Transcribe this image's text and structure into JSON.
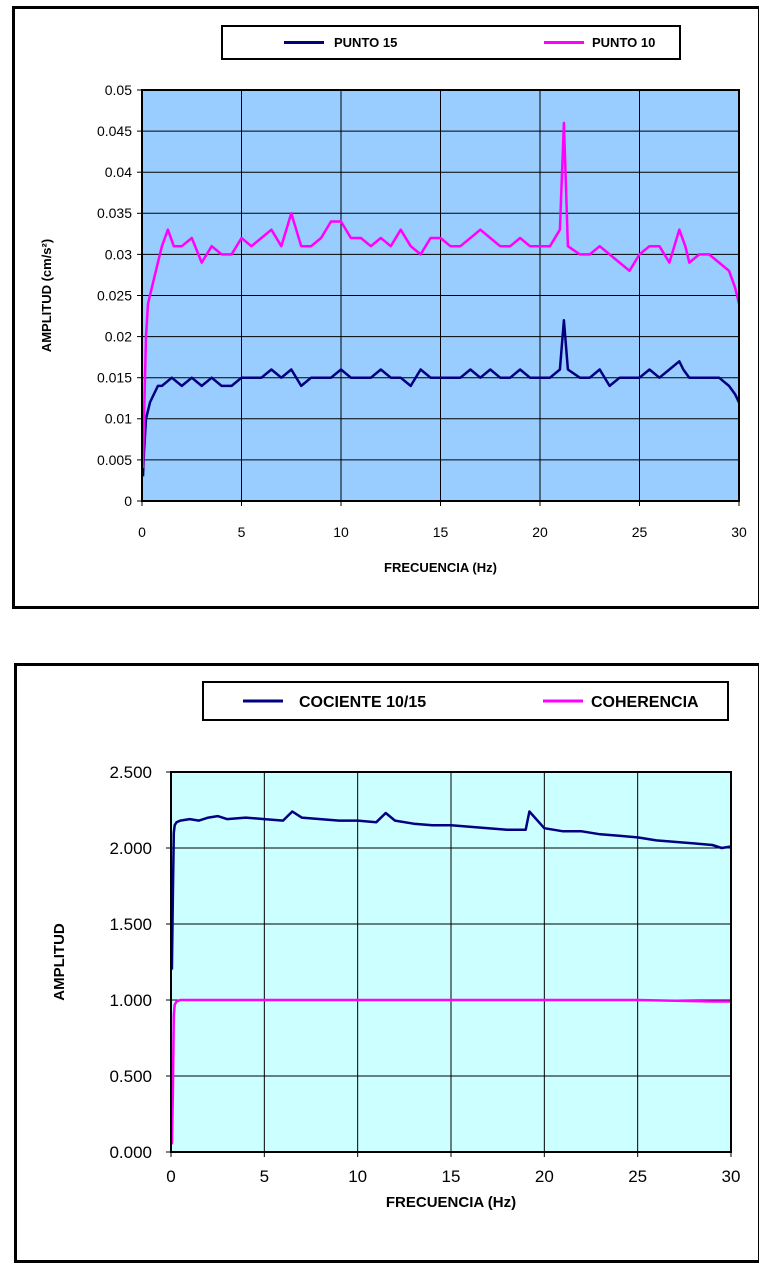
{
  "chart_data": [
    {
      "type": "line",
      "title": "",
      "xlabel": "FRECUENCIA (Hz)",
      "ylabel": "AMPLITUD (cm/s²)",
      "xlim": [
        0,
        30
      ],
      "ylim": [
        0,
        0.05
      ],
      "xticks": [
        "0",
        "5",
        "10",
        "15",
        "20",
        "25",
        "30"
      ],
      "yticks": [
        "0",
        "0.005",
        "0.01",
        "0.015",
        "0.02",
        "0.025",
        "0.03",
        "0.035",
        "0.04",
        "0.045",
        "0.05"
      ],
      "grid": true,
      "plot_background": "#99ccff",
      "legend_position": "top",
      "series": [
        {
          "name": "PUNTO 15",
          "color": "#000080",
          "x": [
            0.05,
            0.1,
            0.2,
            0.4,
            0.6,
            0.8,
            1,
            1.5,
            2,
            2.5,
            3,
            3.5,
            4,
            4.5,
            5,
            5.5,
            6,
            6.5,
            7,
            7.5,
            8,
            8.5,
            9,
            9.5,
            10,
            10.5,
            11,
            11.5,
            12,
            12.5,
            13,
            13.5,
            14,
            14.5,
            15,
            15.5,
            16,
            16.5,
            17,
            17.5,
            18,
            18.5,
            19,
            19.5,
            20,
            20.5,
            21,
            21.2,
            21.4,
            22,
            22.5,
            23,
            23.5,
            24,
            24.5,
            25,
            25.5,
            26,
            26.5,
            27,
            27.2,
            27.5,
            28,
            28.5,
            29,
            29.5,
            29.8,
            30
          ],
          "y": [
            0.003,
            0.006,
            0.01,
            0.012,
            0.013,
            0.014,
            0.014,
            0.015,
            0.014,
            0.015,
            0.014,
            0.015,
            0.014,
            0.014,
            0.015,
            0.015,
            0.015,
            0.016,
            0.015,
            0.016,
            0.014,
            0.015,
            0.015,
            0.015,
            0.016,
            0.015,
            0.015,
            0.015,
            0.016,
            0.015,
            0.015,
            0.014,
            0.016,
            0.015,
            0.015,
            0.015,
            0.015,
            0.016,
            0.015,
            0.016,
            0.015,
            0.015,
            0.016,
            0.015,
            0.015,
            0.015,
            0.016,
            0.022,
            0.016,
            0.015,
            0.015,
            0.016,
            0.014,
            0.015,
            0.015,
            0.015,
            0.016,
            0.015,
            0.016,
            0.017,
            0.016,
            0.015,
            0.015,
            0.015,
            0.015,
            0.014,
            0.013,
            0.012
          ]
        },
        {
          "name": "PUNTO 10",
          "color": "#ff00ff",
          "x": [
            0.05,
            0.1,
            0.2,
            0.3,
            0.5,
            0.8,
            1,
            1.3,
            1.6,
            2,
            2.5,
            3,
            3.5,
            4,
            4.5,
            5,
            5.5,
            6,
            6.5,
            7,
            7.5,
            8,
            8.5,
            9,
            9.5,
            10,
            10.5,
            11,
            11.5,
            12,
            12.5,
            13,
            13.5,
            14,
            14.5,
            15,
            15.5,
            16,
            16.5,
            17,
            17.5,
            18,
            18.5,
            19,
            19.5,
            20,
            20.5,
            21,
            21.2,
            21.4,
            22,
            22.5,
            23,
            23.5,
            24,
            24.5,
            25,
            25.5,
            26,
            26.5,
            27,
            27.3,
            27.5,
            28,
            28.5,
            29,
            29.5,
            29.8,
            30
          ],
          "y": [
            0.004,
            0.01,
            0.02,
            0.024,
            0.026,
            0.029,
            0.031,
            0.033,
            0.031,
            0.031,
            0.032,
            0.029,
            0.031,
            0.03,
            0.03,
            0.032,
            0.031,
            0.032,
            0.033,
            0.031,
            0.035,
            0.031,
            0.031,
            0.032,
            0.034,
            0.034,
            0.032,
            0.032,
            0.031,
            0.032,
            0.031,
            0.033,
            0.031,
            0.03,
            0.032,
            0.032,
            0.031,
            0.031,
            0.032,
            0.033,
            0.032,
            0.031,
            0.031,
            0.032,
            0.031,
            0.031,
            0.031,
            0.033,
            0.046,
            0.031,
            0.03,
            0.03,
            0.031,
            0.03,
            0.029,
            0.028,
            0.03,
            0.031,
            0.031,
            0.029,
            0.033,
            0.031,
            0.029,
            0.03,
            0.03,
            0.029,
            0.028,
            0.026,
            0.024
          ]
        }
      ]
    },
    {
      "type": "line",
      "title": "",
      "xlabel": "FRECUENCIA (Hz)",
      "ylabel": "AMPLITUD",
      "xlim": [
        0,
        30
      ],
      "ylim": [
        0,
        2.5
      ],
      "xticks": [
        "0",
        "5",
        "10",
        "15",
        "20",
        "25",
        "30"
      ],
      "yticks": [
        "0.000",
        "0.500",
        "1.000",
        "1.500",
        "2.000",
        "2.500"
      ],
      "grid": true,
      "plot_background": "#ccffff",
      "legend_position": "top",
      "series": [
        {
          "name": "COCIENTE 10/15",
          "color": "#000080",
          "x": [
            0.05,
            0.1,
            0.15,
            0.2,
            0.3,
            0.5,
            1,
            1.5,
            2,
            2.5,
            3,
            4,
            5,
            6,
            6.5,
            7,
            8,
            9,
            10,
            11,
            11.5,
            12,
            13,
            14,
            15,
            16,
            17,
            18,
            19,
            19.2,
            20,
            21,
            22,
            23,
            24,
            25,
            26,
            27,
            28,
            29,
            29.5,
            30
          ],
          "y": [
            1.2,
            1.7,
            2.1,
            2.15,
            2.17,
            2.18,
            2.19,
            2.18,
            2.2,
            2.21,
            2.19,
            2.2,
            2.19,
            2.18,
            2.24,
            2.2,
            2.19,
            2.18,
            2.18,
            2.17,
            2.23,
            2.18,
            2.16,
            2.15,
            2.15,
            2.14,
            2.13,
            2.12,
            2.12,
            2.24,
            2.13,
            2.11,
            2.11,
            2.09,
            2.08,
            2.07,
            2.05,
            2.04,
            2.03,
            2.02,
            2.0,
            2.01
          ]
        },
        {
          "name": "COHERENCIA",
          "color": "#ff00ff",
          "x": [
            0.05,
            0.1,
            0.15,
            0.2,
            0.3,
            0.5,
            1,
            2,
            5,
            10,
            15,
            20,
            25,
            29,
            30
          ],
          "y": [
            0.05,
            0.4,
            0.9,
            0.97,
            0.99,
            1.0,
            1.0,
            1.0,
            1.0,
            1.0,
            1.0,
            1.0,
            1.0,
            0.99,
            0.99
          ]
        }
      ]
    }
  ]
}
